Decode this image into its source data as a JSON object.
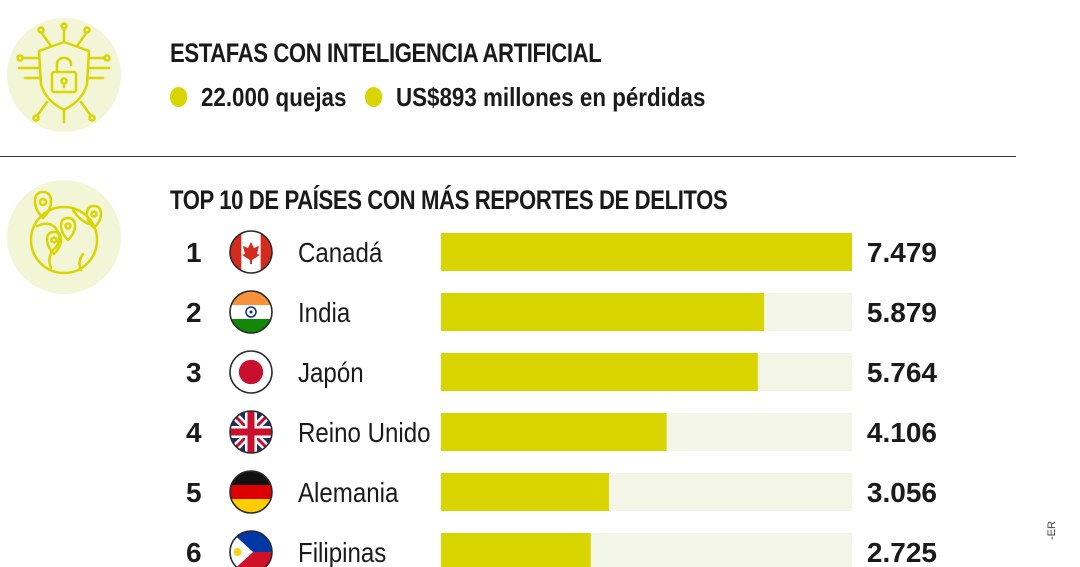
{
  "header": {
    "title": "ESTAFAS CON INTELIGENCIA ARTIFICIAL",
    "stats": [
      "22.000 quejas",
      "US$893 millones en pérdidas"
    ]
  },
  "colors": {
    "accent": "#d9d500",
    "track": "#f3f6e6",
    "icon_bg": "#f2f5d6"
  },
  "icons": [
    "shield-lock-icon",
    "globe-pins-icon"
  ],
  "chart_data": {
    "type": "bar",
    "orientation": "horizontal",
    "title": "TOP 10 DE PAÍSES CON MÁS REPORTES DE DELITOS",
    "ranks": [
      "1",
      "2",
      "3",
      "4",
      "5",
      "6"
    ],
    "categories": [
      "Canadá",
      "India",
      "Japón",
      "Reino Unido",
      "Alemania",
      "Filipinas"
    ],
    "values": [
      7479,
      5879,
      5764,
      4106,
      3056,
      2725
    ],
    "value_labels": [
      "7.479",
      "5.879",
      "5.764",
      "4.106",
      "3.056",
      "2.725"
    ],
    "flags": [
      "canada",
      "india",
      "japan",
      "uk",
      "germany",
      "philippines"
    ],
    "xlim": [
      0,
      7479
    ]
  },
  "credit": "-ER"
}
